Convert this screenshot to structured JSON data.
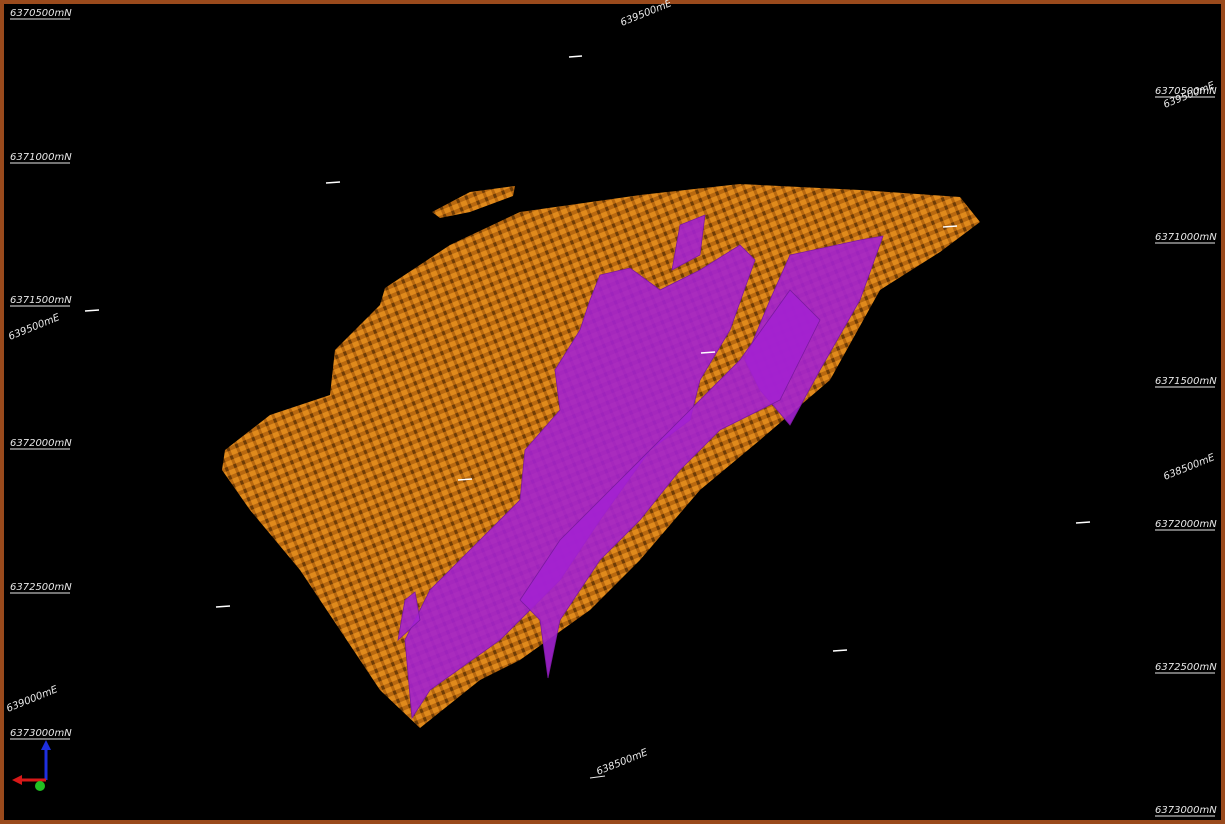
{
  "grid_labels": {
    "left": [
      "6370500mN",
      "6371000mN",
      "6371500mN",
      "639500mE",
      "6372000mN",
      "6372500mN",
      "639000mE",
      "6373000mN"
    ],
    "top": [
      "639500mE"
    ],
    "right": [
      "6370500mN",
      "639500mE",
      "6371000mN",
      "6371500mN",
      "638500mE",
      "6372000mN",
      "6372500mN",
      "6373000mN"
    ],
    "bottom": [
      "638500mE"
    ]
  }
}
